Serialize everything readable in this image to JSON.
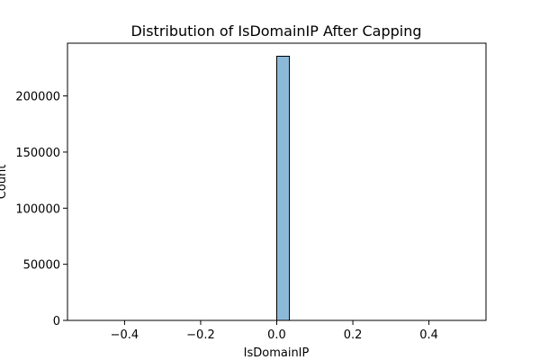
{
  "chart_data": {
    "type": "bar",
    "title": "Distribution of IsDomainIP After Capping",
    "xlabel": "IsDomainIP",
    "ylabel": "Count",
    "bins": [
      {
        "x0": 0.0,
        "x1": 0.0333,
        "count": 235370
      }
    ],
    "xlim": [
      -0.55,
      0.55
    ],
    "ylim": [
      0,
      247000
    ],
    "xticks": [
      -0.4,
      -0.2,
      0.0,
      0.2,
      0.4
    ],
    "xtick_labels": [
      "−0.4",
      "−0.2",
      "0.0",
      "0.2",
      "0.4"
    ],
    "yticks": [
      0,
      50000,
      100000,
      150000,
      200000
    ],
    "ytick_labels": [
      "0",
      "50000",
      "100000",
      "150000",
      "200000"
    ],
    "baseline": [
      -0.5,
      0.5
    ],
    "grid": false,
    "bar_color": "#8db9d9",
    "edge_color": "#000000"
  }
}
